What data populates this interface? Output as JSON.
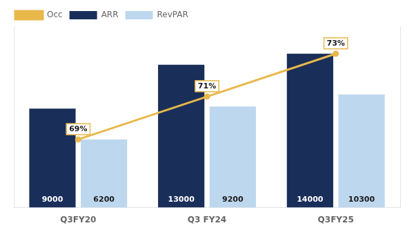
{
  "chart_data": {
    "type": "bar",
    "categories": [
      "Q3FY20",
      "Q3 FY24",
      "Q3FY25"
    ],
    "series": [
      {
        "name": "ARR",
        "color": "#1a2e5a",
        "values": [
          9000,
          13000,
          14000
        ],
        "data_labels": true
      },
      {
        "name": "RevPAR",
        "color": "#bdd7ee",
        "values": [
          6200,
          9200,
          10300
        ],
        "data_labels": true
      },
      {
        "name": "Occ",
        "type": "line",
        "color": "#e8b84b",
        "axis": "y2",
        "values": [
          69,
          71,
          73
        ],
        "value_labels": [
          "69%",
          "71%",
          "73%"
        ],
        "data_labels": true
      }
    ],
    "ylim": [
      0,
      16500
    ],
    "y2lim": [
      65.82,
      74.28
    ],
    "tick_labels": "x",
    "legend": "upper left",
    "grid": false
  }
}
